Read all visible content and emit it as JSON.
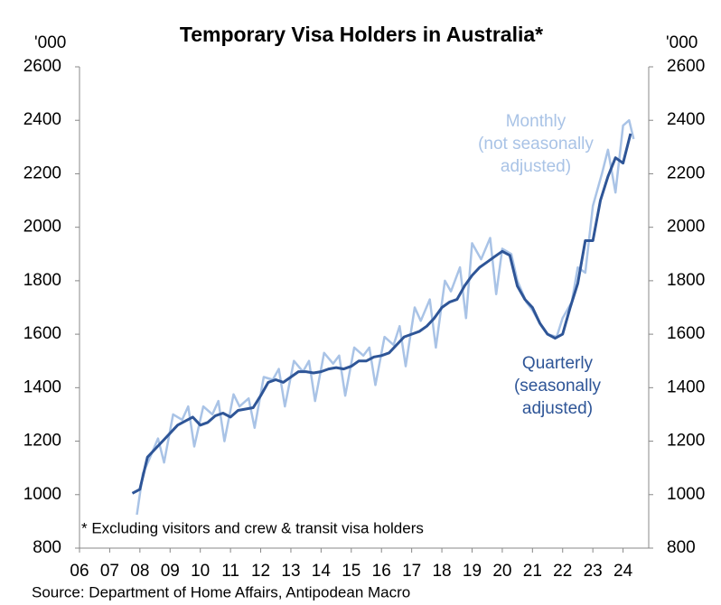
{
  "chart_data": {
    "type": "line",
    "title": "Temporary Visa Holders in Australia*",
    "y_unit": "'000",
    "y2_unit": "'000",
    "footnote": "* Excluding visitors and crew & transit visa holders",
    "source": "Source: Department of Home Affairs, Antipodean Macro",
    "xlim": [
      2006,
      2024.85
    ],
    "xticks": [
      {
        "value": 2006,
        "label": "06"
      },
      {
        "value": 2007,
        "label": "07"
      },
      {
        "value": 2008,
        "label": "08"
      },
      {
        "value": 2009,
        "label": "09"
      },
      {
        "value": 2010,
        "label": "10"
      },
      {
        "value": 2011,
        "label": "11"
      },
      {
        "value": 2012,
        "label": "12"
      },
      {
        "value": 2013,
        "label": "13"
      },
      {
        "value": 2014,
        "label": "14"
      },
      {
        "value": 2015,
        "label": "15"
      },
      {
        "value": 2016,
        "label": "16"
      },
      {
        "value": 2017,
        "label": "17"
      },
      {
        "value": 2018,
        "label": "18"
      },
      {
        "value": 2019,
        "label": "19"
      },
      {
        "value": 2020,
        "label": "20"
      },
      {
        "value": 2021,
        "label": "21"
      },
      {
        "value": 2022,
        "label": "22"
      },
      {
        "value": 2023,
        "label": "23"
      },
      {
        "value": 2024,
        "label": "24"
      }
    ],
    "ylim": [
      800,
      2600
    ],
    "yticks": [
      800,
      1000,
      1200,
      1400,
      1600,
      1800,
      2000,
      2200,
      2400,
      2600
    ],
    "y2lim": [
      800,
      2600
    ],
    "y2ticks": [
      800,
      1000,
      1200,
      1400,
      1600,
      1800,
      2000,
      2200,
      2400,
      2600
    ],
    "series": [
      {
        "name": "Monthly",
        "note": [
          "(not seasonally",
          "adjusted)"
        ],
        "color": "#a9c3e6",
        "x": [
          2007.9,
          2008.1,
          2008.3,
          2008.6,
          2008.8,
          2009.1,
          2009.4,
          2009.6,
          2009.8,
          2010.1,
          2010.4,
          2010.6,
          2010.8,
          2011.1,
          2011.3,
          2011.6,
          2011.8,
          2012.1,
          2012.4,
          2012.6,
          2012.8,
          2013.1,
          2013.4,
          2013.6,
          2013.8,
          2014.1,
          2014.4,
          2014.6,
          2014.8,
          2015.1,
          2015.4,
          2015.6,
          2015.8,
          2016.1,
          2016.4,
          2016.6,
          2016.8,
          2017.1,
          2017.3,
          2017.6,
          2017.8,
          2018.1,
          2018.3,
          2018.6,
          2018.8,
          2019.0,
          2019.3,
          2019.6,
          2019.8,
          2020.0,
          2020.3,
          2020.5,
          2020.8,
          2021.0,
          2021.3,
          2021.5,
          2021.8,
          2022.0,
          2022.3,
          2022.5,
          2022.75,
          2023.0,
          2023.3,
          2023.5,
          2023.75,
          2024.0,
          2024.2,
          2024.35
        ],
        "values": [
          925,
          1080,
          1130,
          1210,
          1120,
          1300,
          1280,
          1330,
          1180,
          1330,
          1300,
          1350,
          1200,
          1375,
          1330,
          1360,
          1250,
          1440,
          1430,
          1470,
          1330,
          1500,
          1460,
          1500,
          1350,
          1530,
          1490,
          1520,
          1370,
          1550,
          1520,
          1550,
          1410,
          1590,
          1560,
          1630,
          1480,
          1700,
          1650,
          1730,
          1550,
          1800,
          1760,
          1850,
          1660,
          1940,
          1880,
          1960,
          1750,
          1920,
          1900,
          1800,
          1720,
          1690,
          1630,
          1600,
          1590,
          1660,
          1720,
          1850,
          1830,
          2080,
          2200,
          2290,
          2130,
          2380,
          2400,
          2330
        ]
      },
      {
        "name": "Quarterly",
        "note": [
          "(seasonally",
          "adjusted)"
        ],
        "color": "#2e5597",
        "x": [
          2007.75,
          2008.0,
          2008.25,
          2008.5,
          2008.75,
          2009.0,
          2009.25,
          2009.5,
          2009.75,
          2010.0,
          2010.25,
          2010.5,
          2010.75,
          2011.0,
          2011.25,
          2011.5,
          2011.75,
          2012.0,
          2012.25,
          2012.5,
          2012.75,
          2013.0,
          2013.25,
          2013.5,
          2013.75,
          2014.0,
          2014.25,
          2014.5,
          2014.75,
          2015.0,
          2015.25,
          2015.5,
          2015.75,
          2016.0,
          2016.25,
          2016.5,
          2016.75,
          2017.0,
          2017.25,
          2017.5,
          2017.75,
          2018.0,
          2018.25,
          2018.5,
          2018.75,
          2019.0,
          2019.25,
          2019.5,
          2019.75,
          2020.0,
          2020.25,
          2020.5,
          2020.75,
          2021.0,
          2021.25,
          2021.5,
          2021.75,
          2022.0,
          2022.25,
          2022.5,
          2022.75,
          2023.0,
          2023.25,
          2023.5,
          2023.75,
          2024.0,
          2024.25
        ],
        "values": [
          1005,
          1020,
          1140,
          1170,
          1200,
          1230,
          1260,
          1275,
          1290,
          1260,
          1270,
          1295,
          1305,
          1290,
          1315,
          1320,
          1325,
          1370,
          1420,
          1430,
          1420,
          1440,
          1460,
          1460,
          1455,
          1460,
          1470,
          1475,
          1470,
          1480,
          1500,
          1500,
          1515,
          1520,
          1530,
          1560,
          1590,
          1600,
          1610,
          1630,
          1660,
          1700,
          1720,
          1730,
          1780,
          1820,
          1850,
          1870,
          1890,
          1910,
          1895,
          1780,
          1730,
          1700,
          1640,
          1600,
          1585,
          1600,
          1700,
          1790,
          1950,
          1950,
          2100,
          2190,
          2260,
          2240,
          2350
        ]
      }
    ]
  }
}
